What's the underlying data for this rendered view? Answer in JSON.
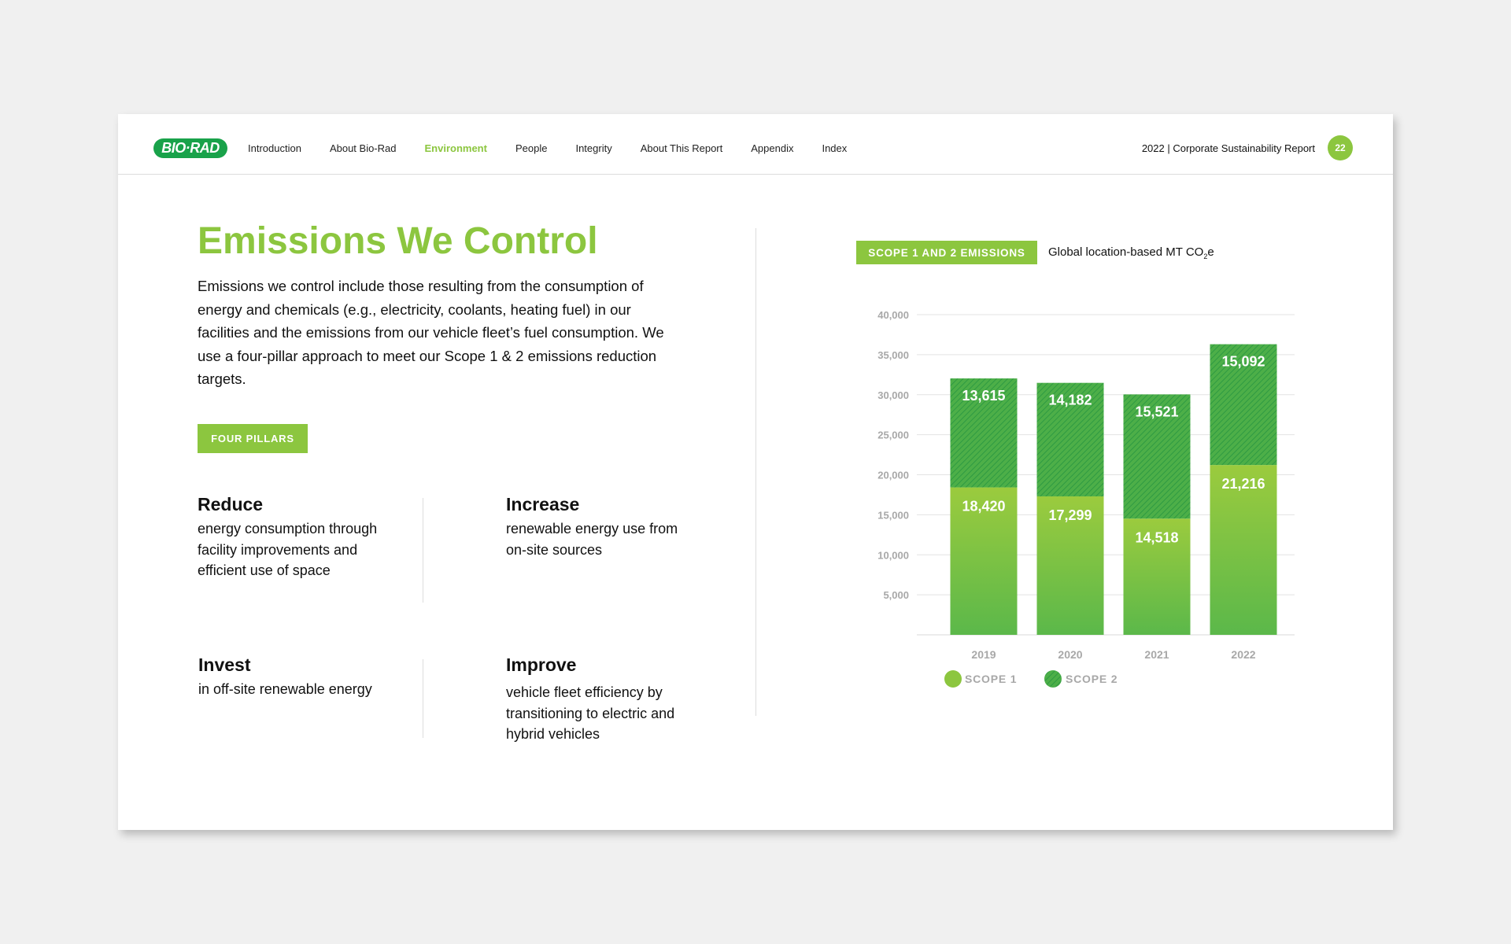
{
  "header": {
    "logo": "BIO·RAD",
    "nav": [
      "Introduction",
      "About Bio-Rad",
      "Environment",
      "People",
      "Integrity",
      "About This Report",
      "Appendix",
      "Index"
    ],
    "active_nav": "Environment",
    "report_title": "2022  |  Corporate Sustainability Report",
    "page_number": "22"
  },
  "main": {
    "title": "Emissions We Control",
    "intro": "Emissions we control include those resulting from the consumption of energy and chemicals (e.g., electricity, coolants, heating fuel) in our facilities and the emissions from our vehicle fleet’s fuel consumption. We use a four-pillar approach to meet our Scope 1 & 2 emissions reduction targets.",
    "pillars_badge": "FOUR PILLARS",
    "pillars": [
      {
        "title": "Reduce",
        "body": "energy consumption through facility improvements and efficient use of space"
      },
      {
        "title": "Increase",
        "body": "renewable energy use from on-site sources"
      },
      {
        "title": "Invest",
        "body": "in off-site renewable energy"
      },
      {
        "title": "Improve",
        "body": "vehicle fleet efficiency by transitioning to electric and hybrid vehicles"
      }
    ]
  },
  "chart_header": {
    "badge": "SCOPE 1 AND 2 EMISSIONS",
    "subtitle_main": "Global location-based MT CO",
    "subtitle_sub": "2",
    "subtitle_end": "e"
  },
  "colors": {
    "accent": "#8cc63f",
    "scope1_top": "#9bcb3e",
    "scope1_bottom": "#5bb84a",
    "scope2": "#3aa84a",
    "logo": "#19a24a"
  },
  "chart_data": {
    "type": "bar",
    "stacked": true,
    "categories": [
      "2019",
      "2020",
      "2021",
      "2022"
    ],
    "series": [
      {
        "name": "SCOPE 1",
        "values": [
          18420,
          17299,
          14518,
          21216
        ]
      },
      {
        "name": "SCOPE 2",
        "values": [
          13615,
          14182,
          15521,
          15092
        ]
      }
    ],
    "value_labels": [
      [
        "18,420",
        "17,299",
        "14,518",
        "21,216"
      ],
      [
        "13,615",
        "14,182",
        "15,521",
        "15,092"
      ]
    ],
    "ylim": [
      0,
      40000
    ],
    "yticks": [
      5000,
      10000,
      15000,
      20000,
      25000,
      30000,
      35000,
      40000
    ],
    "ytick_labels": [
      "5,000",
      "10,000",
      "15,000",
      "20,000",
      "25,000",
      "30,000",
      "35,000",
      "40,000"
    ],
    "grid": true,
    "legend_position": "bottom"
  }
}
